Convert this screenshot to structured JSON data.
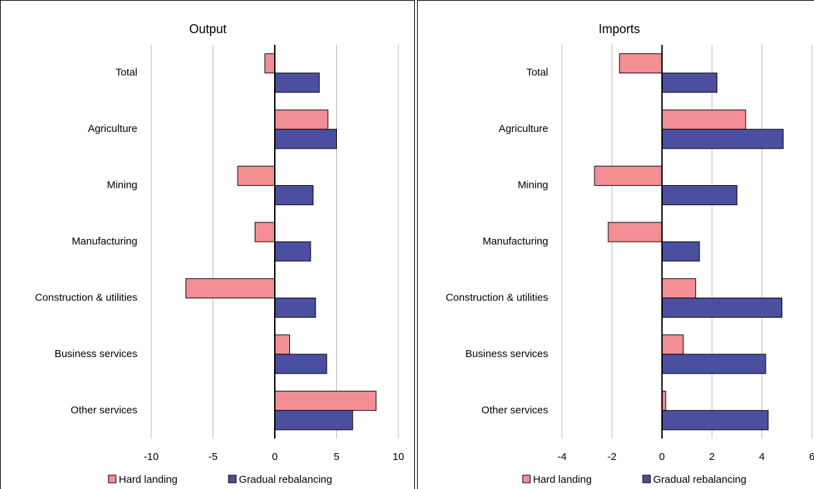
{
  "chart_data": [
    {
      "type": "bar",
      "orientation": "horizontal",
      "title": "Output",
      "categories": [
        "Total",
        "Agriculture",
        "Mining",
        "Manufacturing",
        "Construction & utilities",
        "Business services",
        "Other services"
      ],
      "series": [
        {
          "name": "Hard landing",
          "color": "#f28e94",
          "values": [
            -0.8,
            4.3,
            -3.0,
            -1.6,
            -7.2,
            1.2,
            8.2
          ]
        },
        {
          "name": "Gradual rebalancing",
          "color": "#4a4fa0",
          "values": [
            3.6,
            5.0,
            3.1,
            2.9,
            3.3,
            4.2,
            6.3
          ]
        }
      ],
      "xlim": [
        -10,
        10
      ],
      "xticks": [
        -10,
        -5,
        0,
        5,
        10
      ],
      "grid": true,
      "legend": "bottom"
    },
    {
      "type": "bar",
      "orientation": "horizontal",
      "title": "Imports",
      "categories": [
        "Total",
        "Agriculture",
        "Mining",
        "Manufacturing",
        "Construction & utilities",
        "Business services",
        "Other services"
      ],
      "series": [
        {
          "name": "Hard landing",
          "color": "#f28e94",
          "values": [
            -1.7,
            3.35,
            -2.7,
            -2.15,
            1.35,
            0.85,
            0.15
          ]
        },
        {
          "name": "Gradual rebalancing",
          "color": "#4a4fa0",
          "values": [
            2.2,
            4.85,
            3.0,
            1.5,
            4.8,
            4.15,
            4.25
          ]
        }
      ],
      "xlim": [
        -4,
        6
      ],
      "xticks": [
        -4,
        -2,
        0,
        2,
        4,
        6
      ],
      "grid": true,
      "legend": "bottom"
    }
  ]
}
